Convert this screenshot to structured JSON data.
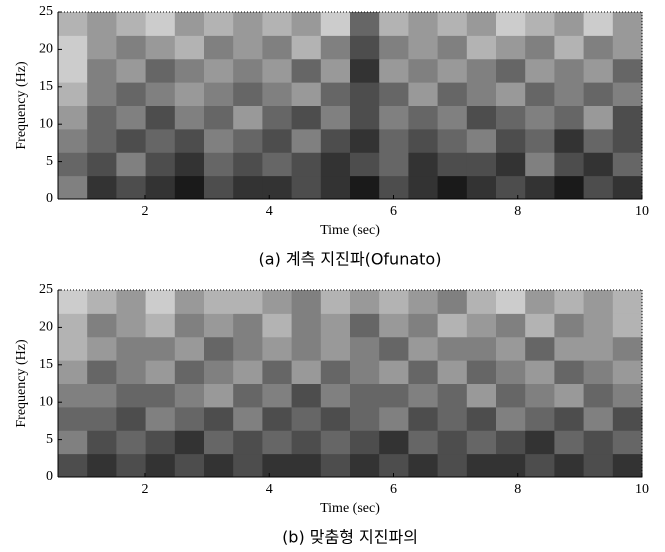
{
  "chart_data": [
    {
      "type": "heatmap",
      "caption": "(a) 계측 지진파(Ofunato)",
      "xlabel": "Time (sec)",
      "ylabel": "Frequency (Hz)",
      "xlim": [
        0.6,
        10
      ],
      "ylim": [
        0,
        25
      ],
      "xticks": [
        2,
        4,
        6,
        8,
        10
      ],
      "yticks": [
        0,
        5,
        10,
        15,
        20,
        25
      ],
      "zlim": [
        0,
        1
      ],
      "z": [
        [
          0.5,
          0.2,
          0.3,
          0.2,
          0.1,
          0.3,
          0.2,
          0.2,
          0.3,
          0.2,
          0.1,
          0.3,
          0.2,
          0.1,
          0.2,
          0.3,
          0.2,
          0.1,
          0.3,
          0.2
        ],
        [
          0.4,
          0.3,
          0.5,
          0.3,
          0.2,
          0.4,
          0.3,
          0.4,
          0.3,
          0.2,
          0.3,
          0.4,
          0.2,
          0.3,
          0.3,
          0.2,
          0.5,
          0.3,
          0.2,
          0.4
        ],
        [
          0.5,
          0.4,
          0.3,
          0.4,
          0.3,
          0.5,
          0.4,
          0.3,
          0.5,
          0.3,
          0.2,
          0.4,
          0.3,
          0.4,
          0.5,
          0.3,
          0.4,
          0.2,
          0.4,
          0.3
        ],
        [
          0.6,
          0.4,
          0.5,
          0.3,
          0.5,
          0.4,
          0.6,
          0.4,
          0.3,
          0.5,
          0.3,
          0.5,
          0.4,
          0.5,
          0.3,
          0.4,
          0.5,
          0.4,
          0.6,
          0.3
        ],
        [
          0.7,
          0.5,
          0.4,
          0.5,
          0.6,
          0.5,
          0.4,
          0.5,
          0.6,
          0.4,
          0.3,
          0.4,
          0.6,
          0.4,
          0.5,
          0.6,
          0.4,
          0.5,
          0.4,
          0.5
        ],
        [
          0.8,
          0.5,
          0.6,
          0.4,
          0.5,
          0.6,
          0.5,
          0.6,
          0.4,
          0.6,
          0.2,
          0.6,
          0.5,
          0.6,
          0.5,
          0.4,
          0.6,
          0.5,
          0.6,
          0.4
        ],
        [
          0.8,
          0.6,
          0.5,
          0.6,
          0.7,
          0.5,
          0.6,
          0.5,
          0.7,
          0.5,
          0.3,
          0.5,
          0.6,
          0.5,
          0.7,
          0.6,
          0.5,
          0.7,
          0.5,
          0.6
        ],
        [
          0.7,
          0.6,
          0.7,
          0.8,
          0.6,
          0.7,
          0.6,
          0.7,
          0.6,
          0.8,
          0.4,
          0.7,
          0.6,
          0.7,
          0.6,
          0.8,
          0.7,
          0.6,
          0.8,
          0.6
        ]
      ]
    },
    {
      "type": "heatmap",
      "caption": "(b) 맞춤형 지진파의",
      "xlabel": "Time (sec)",
      "ylabel": "Frequency (Hz)",
      "xlim": [
        0.6,
        10
      ],
      "ylim": [
        0,
        25
      ],
      "xticks": [
        2,
        4,
        6,
        8,
        10
      ],
      "yticks": [
        0,
        5,
        10,
        15,
        20,
        25
      ],
      "zlim": [
        0,
        1
      ],
      "z": [
        [
          0.3,
          0.2,
          0.3,
          0.2,
          0.3,
          0.2,
          0.3,
          0.2,
          0.2,
          0.3,
          0.2,
          0.3,
          0.2,
          0.3,
          0.2,
          0.2,
          0.3,
          0.2,
          0.3,
          0.2
        ],
        [
          0.5,
          0.3,
          0.4,
          0.3,
          0.2,
          0.4,
          0.3,
          0.4,
          0.3,
          0.4,
          0.3,
          0.2,
          0.4,
          0.3,
          0.4,
          0.3,
          0.2,
          0.4,
          0.3,
          0.4
        ],
        [
          0.4,
          0.4,
          0.3,
          0.5,
          0.4,
          0.3,
          0.5,
          0.3,
          0.4,
          0.3,
          0.4,
          0.5,
          0.3,
          0.4,
          0.3,
          0.5,
          0.4,
          0.3,
          0.5,
          0.3
        ],
        [
          0.5,
          0.5,
          0.4,
          0.4,
          0.5,
          0.6,
          0.4,
          0.5,
          0.3,
          0.5,
          0.4,
          0.4,
          0.5,
          0.4,
          0.6,
          0.4,
          0.5,
          0.6,
          0.4,
          0.5
        ],
        [
          0.6,
          0.4,
          0.5,
          0.6,
          0.4,
          0.5,
          0.6,
          0.4,
          0.6,
          0.4,
          0.5,
          0.6,
          0.4,
          0.6,
          0.4,
          0.5,
          0.6,
          0.4,
          0.5,
          0.6
        ],
        [
          0.7,
          0.6,
          0.5,
          0.5,
          0.6,
          0.4,
          0.5,
          0.6,
          0.5,
          0.6,
          0.5,
          0.4,
          0.6,
          0.5,
          0.5,
          0.6,
          0.4,
          0.6,
          0.6,
          0.5
        ],
        [
          0.7,
          0.5,
          0.6,
          0.7,
          0.5,
          0.6,
          0.5,
          0.7,
          0.5,
          0.6,
          0.4,
          0.6,
          0.5,
          0.7,
          0.6,
          0.5,
          0.7,
          0.5,
          0.6,
          0.7
        ],
        [
          0.8,
          0.7,
          0.6,
          0.8,
          0.6,
          0.7,
          0.7,
          0.6,
          0.5,
          0.7,
          0.6,
          0.7,
          0.6,
          0.5,
          0.7,
          0.8,
          0.6,
          0.7,
          0.6,
          0.7
        ]
      ]
    }
  ]
}
